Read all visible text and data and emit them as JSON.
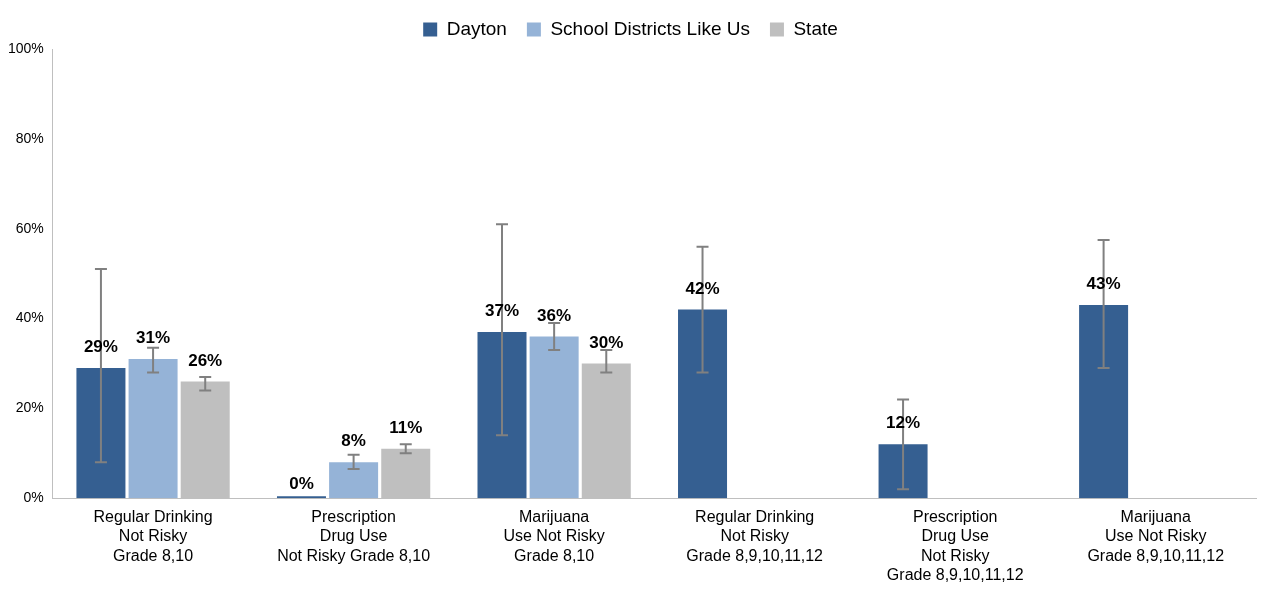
{
  "chart_data": {
    "type": "bar",
    "categories": [
      "Regular Drinking\nNot Risky\nGrade 8,10",
      "Prescription\nDrug Use\nNot Risky Grade 8,10",
      "Marijuana\nUse Not Risky\nGrade 8,10",
      "Regular Drinking\nNot Risky\nGrade 8,9,10,11,12",
      "Prescription\nDrug Use\nNot Risky\nGrade 8,9,10,11,12",
      "Marijuana\nUse Not Risky\nGrade 8,9,10,11,12"
    ],
    "series": [
      {
        "name": "Dayton",
        "color": "#355f91",
        "values": [
          29,
          0,
          37,
          42,
          12,
          43
        ],
        "value_labels": [
          "29%",
          "0%",
          "37%",
          "42%",
          "12%",
          "43%"
        ],
        "errors": [
          [
            8,
            51
          ],
          null,
          [
            14,
            61
          ],
          [
            28,
            56
          ],
          [
            2,
            22
          ],
          [
            29,
            57.5
          ]
        ]
      },
      {
        "name": "School Districts Like Us",
        "color": "#95b3d7",
        "values": [
          31,
          8,
          36,
          null,
          null,
          null
        ],
        "value_labels": [
          "31%",
          "8%",
          "36%",
          null,
          null,
          null
        ],
        "errors": [
          [
            28,
            33.5
          ],
          [
            6.5,
            9.7
          ],
          [
            33,
            39
          ],
          null,
          null,
          null
        ]
      },
      {
        "name": "State",
        "color": "#bfbfbf",
        "values": [
          26,
          11,
          30,
          null,
          null,
          null
        ],
        "value_labels": [
          "26%",
          "11%",
          "30%",
          null,
          null,
          null
        ],
        "errors": [
          [
            24,
            27
          ],
          [
            10,
            12
          ],
          [
            28,
            33
          ],
          null,
          null,
          null
        ]
      }
    ],
    "ylim": [
      0,
      100
    ],
    "yticks": [
      {
        "value": 0,
        "label": "0%"
      },
      {
        "value": 20,
        "label": "20%"
      },
      {
        "value": 40,
        "label": "40%"
      },
      {
        "value": 60,
        "label": "60%"
      },
      {
        "value": 80,
        "label": "80%"
      },
      {
        "value": 100,
        "label": "100%"
      }
    ],
    "grid": false,
    "legend": "top"
  }
}
